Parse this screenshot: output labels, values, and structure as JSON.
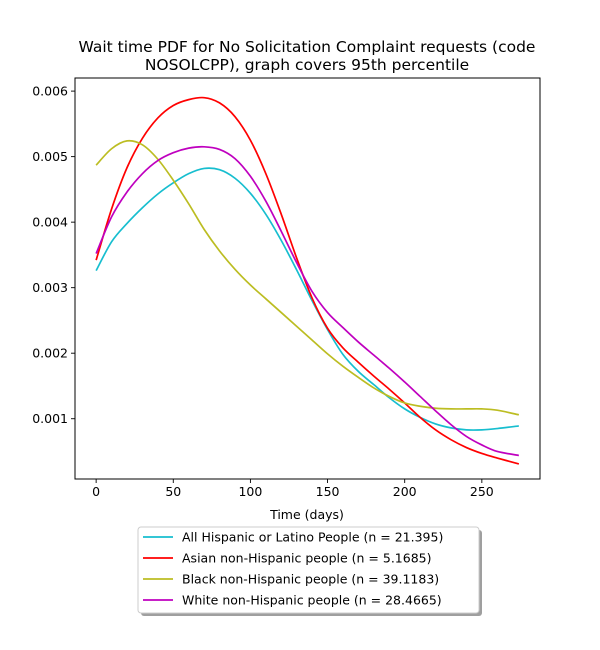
{
  "chart_data": {
    "type": "line",
    "title": "Wait time PDF for No Solicitation Complaint  requests (code NOSOLCPP), graph covers 95th percentile",
    "title_lines": [
      "Wait time PDF for No Solicitation Complaint  requests (code",
      "NOSOLCPP), graph covers 95th percentile"
    ],
    "xlabel": "Time (days)",
    "ylabel": "",
    "xlim": [
      -13.7,
      287.7
    ],
    "ylim": [
      8e-05,
      0.0062
    ],
    "xticks": [
      0,
      50,
      100,
      150,
      200,
      250
    ],
    "xtick_labels": [
      "0",
      "50",
      "100",
      "150",
      "200",
      "250"
    ],
    "yticks": [
      0.001,
      0.002,
      0.003,
      0.004,
      0.005,
      0.006
    ],
    "ytick_labels": [
      "0.001",
      "0.002",
      "0.003",
      "0.004",
      "0.005",
      "0.006"
    ],
    "grid": false,
    "legend_position": "below the plot",
    "x": [
      0,
      10,
      20,
      30,
      40,
      50,
      60,
      70,
      80,
      90,
      100,
      110,
      120,
      130,
      140,
      150,
      160,
      170,
      180,
      190,
      200,
      210,
      220,
      230,
      240,
      250,
      260,
      274
    ],
    "series": [
      {
        "name": "All Hispanic or Latino People (n = 21.395)",
        "color": "#17becf",
        "values": [
          0.00326,
          0.0037,
          0.00398,
          0.00422,
          0.00443,
          0.0046,
          0.00474,
          0.00482,
          0.0048,
          0.00467,
          0.00444,
          0.00412,
          0.00372,
          0.00327,
          0.0028,
          0.00236,
          0.00198,
          0.00172,
          0.00152,
          0.00132,
          0.00115,
          0.00102,
          0.00092,
          0.00086,
          0.00083,
          0.00083,
          0.00085,
          0.00089
        ]
      },
      {
        "name": "Asian non-Hispanic people (n = 5.1685)",
        "color": "#ff0000",
        "values": [
          0.00342,
          0.0042,
          0.00483,
          0.00528,
          0.00559,
          0.00578,
          0.00587,
          0.0059,
          0.00582,
          0.00561,
          0.00525,
          0.00474,
          0.00412,
          0.00345,
          0.00284,
          0.00238,
          0.00208,
          0.00186,
          0.00165,
          0.00145,
          0.00124,
          0.00102,
          0.00083,
          0.00068,
          0.00056,
          0.00047,
          0.0004,
          0.00031
        ]
      },
      {
        "name": "Black non-Hispanic people (n = 39.1183)",
        "color": "#bcbd22",
        "values": [
          0.00487,
          0.00512,
          0.00524,
          0.00518,
          0.00496,
          0.00464,
          0.00428,
          0.00389,
          0.00356,
          0.00328,
          0.00304,
          0.00283,
          0.00262,
          0.00241,
          0.0022,
          0.00199,
          0.0018,
          0.00163,
          0.00147,
          0.00134,
          0.00124,
          0.00119,
          0.00116,
          0.00115,
          0.00115,
          0.00115,
          0.00113,
          0.00106
        ]
      },
      {
        "name": "White non-Hispanic people (n = 28.4665)",
        "color": "#bf00bf",
        "values": [
          0.00352,
          0.00408,
          0.00446,
          0.00474,
          0.00494,
          0.00506,
          0.00513,
          0.00515,
          0.00511,
          0.00497,
          0.0047,
          0.00432,
          0.00386,
          0.00338,
          0.00294,
          0.00262,
          0.00239,
          0.00217,
          0.00197,
          0.00177,
          0.00156,
          0.00134,
          0.00112,
          0.00091,
          0.00073,
          0.0006,
          0.0005,
          0.00044
        ]
      }
    ]
  }
}
